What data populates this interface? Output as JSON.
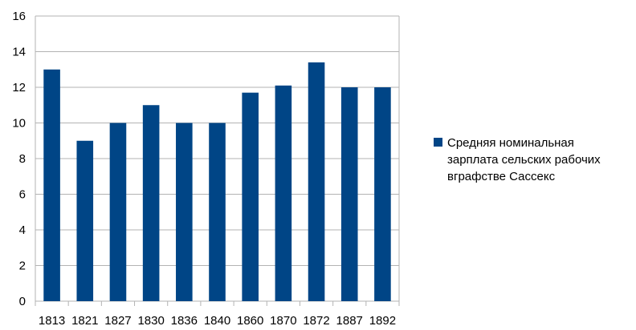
{
  "chart_data": {
    "type": "bar",
    "categories": [
      "1813",
      "1821",
      "1827",
      "1830",
      "1836",
      "1840",
      "1860",
      "1870",
      "1872",
      "1887",
      "1892"
    ],
    "series": [
      {
        "name": "Средняя номинальная зарплата сельских рабочих вграфстве Сассекс",
        "values": [
          13,
          9,
          10,
          11,
          10,
          10,
          11.7,
          12.1,
          13.4,
          12,
          12
        ],
        "color": "#004586"
      }
    ],
    "title": "",
    "xlabel": "",
    "ylabel": "",
    "ylim": [
      0,
      16
    ],
    "yticks": [
      0,
      2,
      4,
      6,
      8,
      10,
      12,
      14,
      16
    ],
    "grid": true,
    "legend_position": "right",
    "grid_color": "#b3b3b3"
  },
  "legend": {
    "label": "Средняя номинальная зарплата сельских рабочих вграфстве Сассекс"
  }
}
